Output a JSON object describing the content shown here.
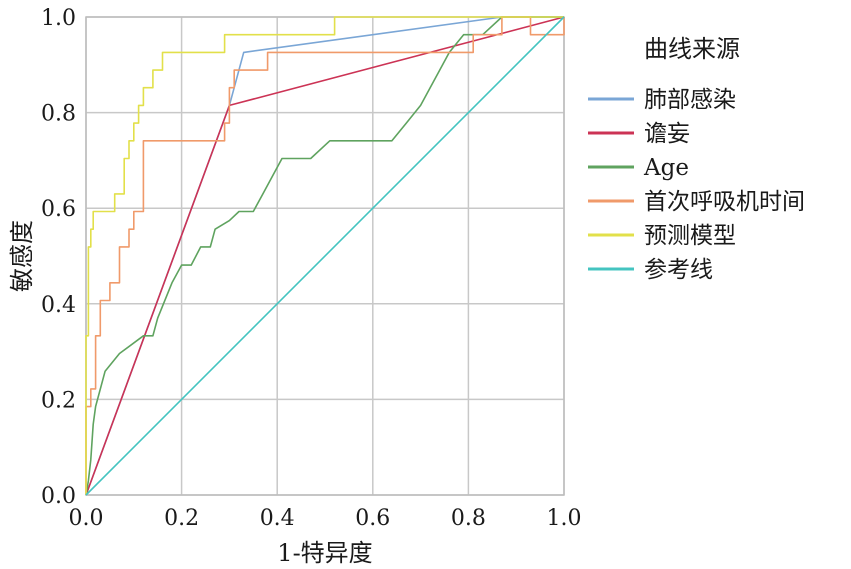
{
  "chart_data": {
    "type": "line",
    "title": "",
    "xlabel": "1-特异度",
    "ylabel": "敏感度",
    "xlim": [
      0,
      1
    ],
    "ylim": [
      0,
      1
    ],
    "x_ticks": [
      "0.0",
      "0.2",
      "0.4",
      "0.6",
      "0.8",
      "1.0"
    ],
    "y_ticks": [
      "0.0",
      "0.2",
      "0.4",
      "0.6",
      "0.8",
      "1.0"
    ],
    "grid": true,
    "legend_title": "曲线来源",
    "legend_position": "right",
    "series": [
      {
        "name": "肺部感染",
        "color": "#7aa6d6",
        "points": [
          [
            0,
            0
          ],
          [
            0.3,
            0.815
          ],
          [
            0.33,
            0.926
          ],
          [
            0.87,
            1.0
          ],
          [
            1.0,
            1.0
          ]
        ]
      },
      {
        "name": "谵妄",
        "color": "#cc3355",
        "points": [
          [
            0,
            0
          ],
          [
            0.3,
            0.815
          ],
          [
            1.0,
            1.0
          ]
        ]
      },
      {
        "name": "Age",
        "color": "#5fa35f",
        "points": [
          [
            0,
            0
          ],
          [
            0.005,
            0.03
          ],
          [
            0.01,
            0.074
          ],
          [
            0.015,
            0.148
          ],
          [
            0.02,
            0.185
          ],
          [
            0.04,
            0.259
          ],
          [
            0.07,
            0.296
          ],
          [
            0.12,
            0.333
          ],
          [
            0.14,
            0.333
          ],
          [
            0.15,
            0.37
          ],
          [
            0.18,
            0.444
          ],
          [
            0.2,
            0.481
          ],
          [
            0.22,
            0.481
          ],
          [
            0.24,
            0.519
          ],
          [
            0.26,
            0.519
          ],
          [
            0.27,
            0.556
          ],
          [
            0.3,
            0.574
          ],
          [
            0.32,
            0.593
          ],
          [
            0.35,
            0.593
          ],
          [
            0.37,
            0.63
          ],
          [
            0.39,
            0.667
          ],
          [
            0.41,
            0.704
          ],
          [
            0.47,
            0.704
          ],
          [
            0.51,
            0.741
          ],
          [
            0.58,
            0.741
          ],
          [
            0.64,
            0.741
          ],
          [
            0.67,
            0.778
          ],
          [
            0.7,
            0.815
          ],
          [
            0.74,
            0.889
          ],
          [
            0.76,
            0.926
          ],
          [
            0.79,
            0.963
          ],
          [
            0.83,
            0.963
          ],
          [
            0.87,
            1.0
          ],
          [
            1.0,
            1.0
          ]
        ]
      },
      {
        "name": "首次呼吸机时间",
        "color": "#f09a6a",
        "points": [
          [
            0,
            0
          ],
          [
            0,
            0.185
          ],
          [
            0.01,
            0.185
          ],
          [
            0.01,
            0.222
          ],
          [
            0.02,
            0.222
          ],
          [
            0.02,
            0.333
          ],
          [
            0.03,
            0.333
          ],
          [
            0.03,
            0.407
          ],
          [
            0.05,
            0.407
          ],
          [
            0.05,
            0.444
          ],
          [
            0.07,
            0.444
          ],
          [
            0.07,
            0.519
          ],
          [
            0.09,
            0.519
          ],
          [
            0.09,
            0.556
          ],
          [
            0.1,
            0.556
          ],
          [
            0.1,
            0.593
          ],
          [
            0.12,
            0.593
          ],
          [
            0.12,
            0.741
          ],
          [
            0.29,
            0.741
          ],
          [
            0.29,
            0.778
          ],
          [
            0.3,
            0.778
          ],
          [
            0.3,
            0.852
          ],
          [
            0.31,
            0.852
          ],
          [
            0.31,
            0.889
          ],
          [
            0.38,
            0.889
          ],
          [
            0.38,
            0.926
          ],
          [
            0.81,
            0.926
          ],
          [
            0.81,
            0.963
          ],
          [
            0.87,
            0.963
          ],
          [
            0.87,
            1.0
          ],
          [
            0.93,
            1.0
          ],
          [
            0.93,
            0.963
          ],
          [
            1.0,
            0.963
          ],
          [
            1.0,
            1.0
          ]
        ]
      },
      {
        "name": "预测模型",
        "color": "#e2e04a",
        "points": [
          [
            0,
            0
          ],
          [
            0,
            0.333
          ],
          [
            0.005,
            0.333
          ],
          [
            0.005,
            0.519
          ],
          [
            0.01,
            0.519
          ],
          [
            0.01,
            0.556
          ],
          [
            0.015,
            0.556
          ],
          [
            0.015,
            0.593
          ],
          [
            0.06,
            0.593
          ],
          [
            0.06,
            0.63
          ],
          [
            0.08,
            0.63
          ],
          [
            0.08,
            0.704
          ],
          [
            0.09,
            0.704
          ],
          [
            0.09,
            0.741
          ],
          [
            0.1,
            0.741
          ],
          [
            0.1,
            0.778
          ],
          [
            0.11,
            0.778
          ],
          [
            0.11,
            0.815
          ],
          [
            0.12,
            0.815
          ],
          [
            0.12,
            0.852
          ],
          [
            0.14,
            0.852
          ],
          [
            0.14,
            0.889
          ],
          [
            0.16,
            0.889
          ],
          [
            0.16,
            0.926
          ],
          [
            0.29,
            0.926
          ],
          [
            0.29,
            0.963
          ],
          [
            0.52,
            0.963
          ],
          [
            0.52,
            1.0
          ],
          [
            1.0,
            1.0
          ]
        ]
      },
      {
        "name": "参考线",
        "color": "#44c4c0",
        "points": [
          [
            0,
            0
          ],
          [
            1,
            1
          ]
        ]
      }
    ]
  }
}
